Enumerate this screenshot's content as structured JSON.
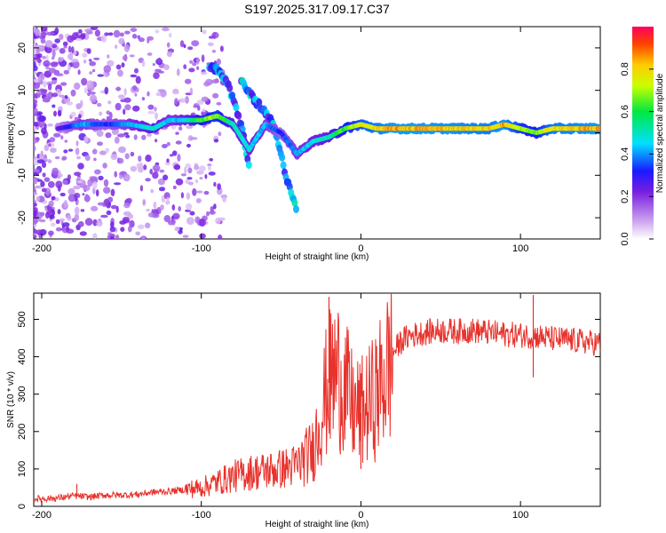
{
  "title": "S197.2025.317.09.17.C37",
  "chart_data": [
    {
      "type": "heatmap",
      "name": "spectrogram",
      "xlabel": "Height of straight line (km)",
      "ylabel": "Frequency (Hz)",
      "xlim": [
        -205,
        150
      ],
      "ylim": [
        -25,
        25
      ],
      "xticks": [
        -200,
        -100,
        0,
        100
      ],
      "yticks": [
        -20,
        -10,
        0,
        10,
        20
      ],
      "colorbar": {
        "label": "Normalized spectral amplitude",
        "range": [
          0,
          1
        ],
        "ticks": [
          0.0,
          0.2,
          0.4,
          0.6,
          0.8
        ]
      },
      "dominant_track": {
        "x": [
          -190,
          -175,
          -160,
          -145,
          -130,
          -120,
          -110,
          -100,
          -90,
          -80,
          -70,
          -60,
          -50,
          -40,
          -30,
          -20,
          -10,
          0,
          10,
          20,
          40,
          60,
          80,
          90,
          100,
          110,
          120,
          150
        ],
        "y": [
          1,
          2,
          2,
          2,
          1,
          3,
          3,
          3,
          4,
          2,
          -4,
          2,
          0,
          -5,
          -2,
          -1,
          1,
          2,
          1,
          1,
          1,
          1,
          1,
          2,
          1,
          0,
          1,
          1
        ],
        "amplitude": [
          0.25,
          0.45,
          0.35,
          0.45,
          0.55,
          0.45,
          0.5,
          0.7,
          0.75,
          0.55,
          0.5,
          0.45,
          0.35,
          0.45,
          0.5,
          0.55,
          0.7,
          0.8,
          0.85,
          0.9,
          0.9,
          0.88,
          0.85,
          0.9,
          0.75,
          0.7,
          0.85,
          0.9
        ]
      },
      "secondary_tracks": [
        {
          "x": [
            -95,
            -85,
            -75,
            -70
          ],
          "y": [
            16,
            13,
            2,
            -8
          ]
        },
        {
          "x": [
            -75,
            -65,
            -55,
            -47,
            -40
          ],
          "y": [
            12,
            7,
            2,
            -10,
            -18
          ]
        }
      ]
    },
    {
      "type": "line",
      "name": "snr",
      "xlabel": "Height of straight line (km)",
      "ylabel": "SNR (10 * v/v)",
      "xlim": [
        -205,
        150
      ],
      "ylim": [
        0,
        570
      ],
      "xticks": [
        -200,
        -100,
        0,
        100
      ],
      "yticks": [
        0,
        100,
        200,
        300,
        400,
        500
      ],
      "color": "#e8322c",
      "series": [
        {
          "name": "SNR",
          "x": [
            -205,
            -190,
            -180,
            -170,
            -160,
            -150,
            -140,
            -130,
            -120,
            -110,
            -100,
            -90,
            -80,
            -70,
            -60,
            -50,
            -40,
            -30,
            -25,
            -20,
            -15,
            -10,
            -5,
            0,
            5,
            10,
            15,
            20,
            25,
            30,
            40,
            50,
            60,
            70,
            80,
            90,
            100,
            110,
            120,
            130,
            140,
            150
          ],
          "y": [
            20,
            22,
            28,
            25,
            30,
            30,
            32,
            38,
            40,
            45,
            50,
            65,
            80,
            90,
            95,
            100,
            110,
            150,
            250,
            330,
            360,
            320,
            260,
            250,
            270,
            300,
            350,
            410,
            440,
            455,
            465,
            470,
            468,
            470,
            465,
            460,
            458,
            455,
            448,
            445,
            440,
            435
          ]
        }
      ],
      "spikes": [
        {
          "x": -178,
          "y": 60
        },
        {
          "x": -20,
          "y": 560
        },
        {
          "x": 0,
          "y": 100
        },
        {
          "x": 108,
          "y": 565
        },
        {
          "x": 108,
          "y": 345
        }
      ]
    }
  ]
}
